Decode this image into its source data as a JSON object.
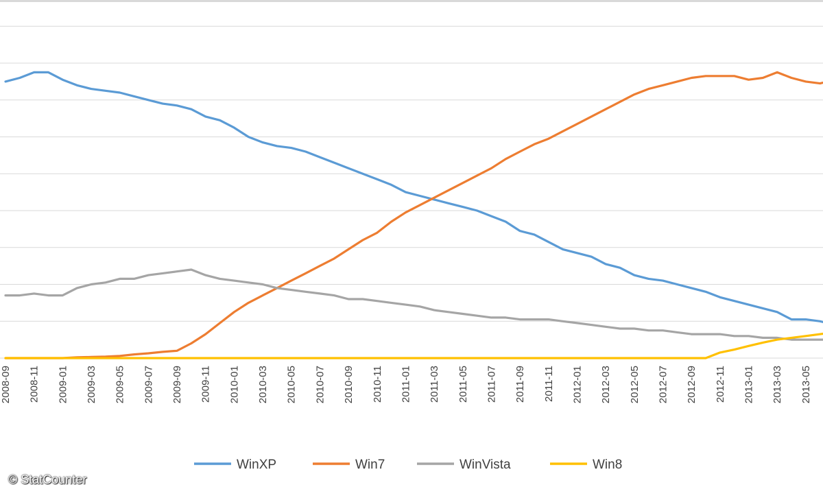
{
  "chart_data": {
    "type": "line",
    "title": "",
    "xlabel": "",
    "ylabel": "",
    "x_tick_labels": [
      "2008-09",
      "2008-11",
      "2009-01",
      "2009-03",
      "2009-05",
      "2009-07",
      "2009-09",
      "2009-11",
      "2010-01",
      "2010-03",
      "2010-05",
      "2010-07",
      "2010-09",
      "2010-11",
      "2011-01",
      "2011-03",
      "2011-05",
      "2011-07",
      "2011-09",
      "2011-11",
      "2012-01",
      "2012-03",
      "2012-05",
      "2012-07",
      "2012-09",
      "2012-11",
      "2013-01",
      "2013-03",
      "2013-05"
    ],
    "x": [
      "2008-09",
      "2008-10",
      "2008-11",
      "2008-12",
      "2009-01",
      "2009-02",
      "2009-03",
      "2009-04",
      "2009-05",
      "2009-06",
      "2009-07",
      "2009-08",
      "2009-09",
      "2009-10",
      "2009-11",
      "2009-12",
      "2010-01",
      "2010-02",
      "2010-03",
      "2010-04",
      "2010-05",
      "2010-06",
      "2010-07",
      "2010-08",
      "2010-09",
      "2010-10",
      "2010-11",
      "2010-12",
      "2011-01",
      "2011-02",
      "2011-03",
      "2011-04",
      "2011-05",
      "2011-06",
      "2011-07",
      "2011-08",
      "2011-09",
      "2011-10",
      "2011-11",
      "2011-12",
      "2012-01",
      "2012-02",
      "2012-03",
      "2012-04",
      "2012-05",
      "2012-06",
      "2012-07",
      "2012-08",
      "2012-09",
      "2012-10",
      "2012-11",
      "2012-12",
      "2013-01",
      "2013-02",
      "2013-03",
      "2013-04",
      "2013-05",
      "2013-06",
      "2013-07"
    ],
    "ylim": [
      0,
      90
    ],
    "grid": true,
    "legend_position": "bottom",
    "series": [
      {
        "name": "WinXP",
        "color": "#5b9bd5",
        "values": [
          75,
          76,
          77.5,
          77.5,
          75.5,
          74,
          73,
          72.5,
          72,
          71,
          70,
          69,
          68.5,
          67.5,
          65.5,
          64.5,
          62.5,
          60,
          58.5,
          57.5,
          57,
          56,
          54.5,
          53,
          51.5,
          50,
          48.5,
          47,
          45,
          44,
          43,
          42,
          41,
          40,
          38.5,
          37,
          34.5,
          33.5,
          31.5,
          29.5,
          28.5,
          27.5,
          25.5,
          24.5,
          22.5,
          21.5,
          21,
          20,
          19,
          18,
          16.5,
          15.5,
          14.5,
          13.5,
          12.5,
          10.5,
          10.5,
          10,
          9
        ]
      },
      {
        "name": "Win7",
        "color": "#ed7d31",
        "values": [
          0,
          0,
          0,
          0,
          0,
          0.2,
          0.3,
          0.4,
          0.6,
          1,
          1.3,
          1.7,
          2,
          4,
          6.5,
          9.5,
          12.5,
          15,
          17,
          19,
          21,
          23,
          25,
          27,
          29.5,
          32,
          34,
          37,
          39.5,
          41.5,
          43.5,
          45.5,
          47.5,
          49.5,
          51.5,
          54,
          56,
          58,
          59.5,
          61.5,
          63.5,
          65.5,
          67.5,
          69.5,
          71.5,
          73,
          74,
          75,
          76,
          76.5,
          76.5,
          76.5,
          75.5,
          76,
          77.5,
          76,
          75,
          74.5,
          75.5
        ]
      },
      {
        "name": "WinVista",
        "color": "#a5a5a5",
        "values": [
          17,
          17,
          17.5,
          17,
          17,
          19,
          20,
          20.5,
          21.5,
          21.5,
          22.5,
          23,
          23.5,
          24,
          22.5,
          21.5,
          21,
          20.5,
          20,
          19,
          18.5,
          18,
          17.5,
          17,
          16,
          16,
          15.5,
          15,
          14.5,
          14,
          13,
          12.5,
          12,
          11.5,
          11,
          11,
          10.5,
          10.5,
          10.5,
          10,
          9.5,
          9,
          8.5,
          8,
          8,
          7.5,
          7.5,
          7,
          6.5,
          6.5,
          6.5,
          6,
          6,
          5.5,
          5.5,
          5,
          5,
          5,
          5
        ]
      },
      {
        "name": "Win8",
        "color": "#ffc000",
        "values": [
          0,
          0,
          0,
          0,
          0,
          0,
          0,
          0,
          0,
          0,
          0,
          0,
          0,
          0,
          0,
          0,
          0,
          0,
          0,
          0,
          0,
          0,
          0,
          0,
          0,
          0,
          0,
          0,
          0,
          0,
          0,
          0,
          0,
          0,
          0,
          0,
          0,
          0,
          0,
          0,
          0,
          0,
          0,
          0,
          0,
          0,
          0,
          0,
          0,
          0,
          1.5,
          2.3,
          3.3,
          4.2,
          5,
          5.5,
          6,
          6.5,
          7
        ]
      }
    ]
  },
  "watermark": "© StatCounter"
}
